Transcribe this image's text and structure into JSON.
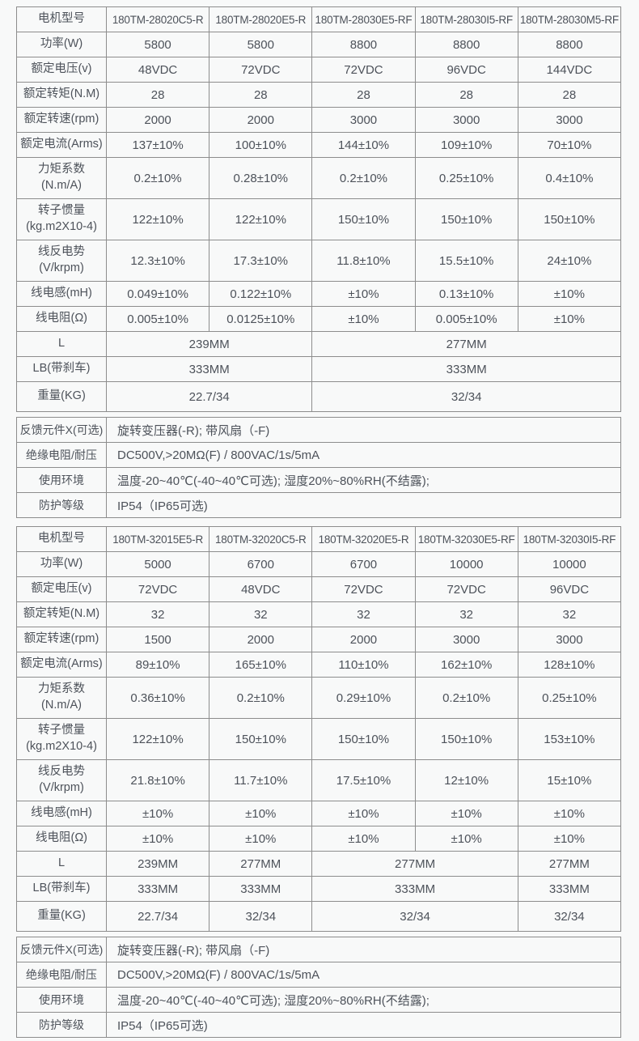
{
  "colors": {
    "border": "#8d8d8d",
    "text": "#4d525a",
    "background": "#f8f9f9"
  },
  "sections": [
    {
      "model_row_label": "电机型号",
      "models": [
        "180TM-28020C5-R",
        "180TM-28020E5-R",
        "180TM-28030E5-RF",
        "180TM-28030I5-RF",
        "180TM-28030M5-RF"
      ],
      "spec_rows": [
        {
          "label": "功率(W)",
          "values": [
            "5800",
            "5800",
            "8800",
            "8800",
            "8800"
          ]
        },
        {
          "label": "额定电压(v)",
          "values": [
            "48VDC",
            "72VDC",
            "72VDC",
            "96VDC",
            "144VDC"
          ]
        },
        {
          "label": "额定转矩(N.M)",
          "values": [
            "28",
            "28",
            "28",
            "28",
            "28"
          ]
        },
        {
          "label": "额定转速(rpm)",
          "values": [
            "2000",
            "2000",
            "3000",
            "3000",
            "3000"
          ]
        },
        {
          "label": "额定电流(Arms)",
          "values": [
            "137±10%",
            "100±10%",
            "144±10%",
            "109±10%",
            "70±10%"
          ]
        },
        {
          "label": "力矩系数\n(N.m/A)",
          "tall": true,
          "values": [
            "0.2±10%",
            "0.28±10%",
            "0.2±10%",
            "0.25±10%",
            "0.4±10%"
          ]
        },
        {
          "label": "转子惯量\n(kg.m2X10-4)",
          "tall": true,
          "values": [
            "122±10%",
            "122±10%",
            "150±10%",
            "150±10%",
            "150±10%"
          ]
        },
        {
          "label": "线反电势\n(V/krpm)",
          "tall": true,
          "values": [
            "12.3±10%",
            "17.3±10%",
            "11.8±10%",
            "15.5±10%",
            "24±10%"
          ]
        },
        {
          "label": "线电感(mH)",
          "values": [
            "0.049±10%",
            "0.122±10%",
            "±10%",
            "0.13±10%",
            "±10%"
          ]
        },
        {
          "label": "线电阻(Ω)",
          "values": [
            "0.005±10%",
            "0.0125±10%",
            "±10%",
            "0.005±10%",
            "±10%"
          ]
        },
        {
          "label": "L",
          "cells": [
            {
              "span": 2,
              "value": "239MM"
            },
            {
              "span": 3,
              "value": "277MM"
            }
          ]
        },
        {
          "label": "LB(带刹车)",
          "cells": [
            {
              "span": 2,
              "value": "333MM"
            },
            {
              "span": 3,
              "value": "333MM"
            }
          ]
        },
        {
          "label": "重量(KG)",
          "weight": true,
          "cells": [
            {
              "span": 2,
              "value": "22.7/34"
            },
            {
              "span": 3,
              "value": "32/34"
            }
          ]
        }
      ],
      "footer_rows": [
        {
          "label": "反馈元件X(可选)",
          "value": "旋转变压器(-R); 带风扇（-F)"
        },
        {
          "label": "绝缘电阻/耐压",
          "value": "DC500V,>20MΩ(F) / 800VAC/1s/5mA"
        },
        {
          "label": "使用环境",
          "value": "温度-20~40℃(-40~40℃可选); 湿度20%~80%RH(不结露);"
        },
        {
          "label": "防护等级",
          "value": "IP54（IP65可选)"
        }
      ]
    },
    {
      "model_row_label": "电机型号",
      "models": [
        "180TM-32015E5-R",
        "180TM-32020C5-R",
        "180TM-32020E5-R",
        "180TM-32030E5-RF",
        "180TM-32030I5-RF"
      ],
      "spec_rows": [
        {
          "label": "功率(W)",
          "values": [
            "5000",
            "6700",
            "6700",
            "10000",
            "10000"
          ]
        },
        {
          "label": "额定电压(v)",
          "values": [
            "72VDC",
            "48VDC",
            "72VDC",
            "72VDC",
            "96VDC"
          ]
        },
        {
          "label": "额定转矩(N.M)",
          "values": [
            "32",
            "32",
            "32",
            "32",
            "32"
          ]
        },
        {
          "label": "额定转速(rpm)",
          "values": [
            "1500",
            "2000",
            "2000",
            "3000",
            "3000"
          ]
        },
        {
          "label": "额定电流(Arms)",
          "values": [
            "89±10%",
            "165±10%",
            "110±10%",
            "162±10%",
            "128±10%"
          ]
        },
        {
          "label": "力矩系数\n(N.m/A)",
          "tall": true,
          "values": [
            "0.36±10%",
            "0.2±10%",
            "0.29±10%",
            "0.2±10%",
            "0.25±10%"
          ]
        },
        {
          "label": "转子惯量\n(kg.m2X10-4)",
          "tall": true,
          "values": [
            "122±10%",
            "150±10%",
            "150±10%",
            "150±10%",
            "153±10%"
          ]
        },
        {
          "label": "线反电势\n(V/krpm)",
          "tall": true,
          "values": [
            "21.8±10%",
            "11.7±10%",
            "17.5±10%",
            "12±10%",
            "15±10%"
          ]
        },
        {
          "label": "线电感(mH)",
          "values": [
            "±10%",
            "±10%",
            "±10%",
            "±10%",
            "±10%"
          ]
        },
        {
          "label": "线电阻(Ω)",
          "values": [
            "±10%",
            "±10%",
            "±10%",
            "±10%",
            "±10%"
          ]
        },
        {
          "label": "L",
          "cells": [
            {
              "span": 1,
              "value": "239MM"
            },
            {
              "span": 1,
              "value": "277MM"
            },
            {
              "span": 2,
              "value": "277MM"
            },
            {
              "span": 1,
              "value": "277MM"
            }
          ]
        },
        {
          "label": "LB(带刹车)",
          "cells": [
            {
              "span": 1,
              "value": "333MM"
            },
            {
              "span": 1,
              "value": "333MM"
            },
            {
              "span": 2,
              "value": "333MM"
            },
            {
              "span": 1,
              "value": "333MM"
            }
          ]
        },
        {
          "label": "重量(KG)",
          "weight": true,
          "cells": [
            {
              "span": 1,
              "value": "22.7/34"
            },
            {
              "span": 1,
              "value": "32/34"
            },
            {
              "span": 2,
              "value": "32/34"
            },
            {
              "span": 1,
              "value": "32/34"
            }
          ]
        }
      ],
      "footer_rows": [
        {
          "label": "反馈元件X(可选)",
          "value": "旋转变压器(-R); 带风扇（-F)"
        },
        {
          "label": "绝缘电阻/耐压",
          "value": "DC500V,>20MΩ(F) / 800VAC/1s/5mA"
        },
        {
          "label": "使用环境",
          "value": "温度-20~40℃(-40~40℃可选); 湿度20%~80%RH(不结露);"
        },
        {
          "label": "防护等级",
          "value": "IP54（IP65可选)"
        }
      ]
    }
  ]
}
